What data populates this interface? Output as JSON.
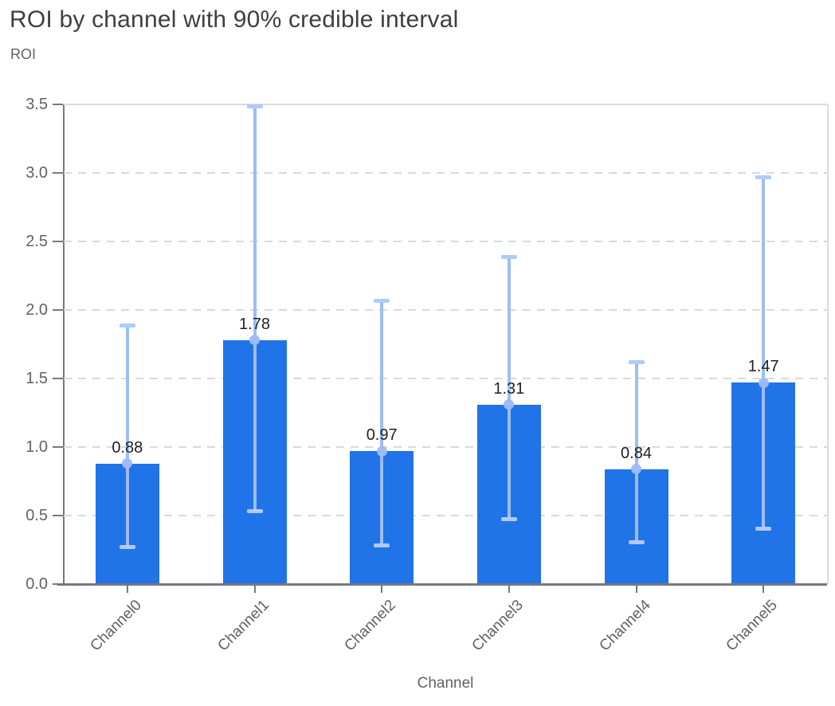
{
  "chart_data": {
    "type": "bar",
    "title": "ROI by channel with 90% credible interval",
    "ylabel": "ROI",
    "xlabel": "Channel",
    "categories": [
      "Channel0",
      "Channel1",
      "Channel2",
      "Channel3",
      "Channel4",
      "Channel5"
    ],
    "series": [
      {
        "name": "ROI mean",
        "values": [
          0.88,
          1.78,
          0.97,
          1.31,
          0.84,
          1.47
        ]
      },
      {
        "name": "90% credible interval lower",
        "values": [
          0.27,
          0.53,
          0.28,
          0.47,
          0.3,
          0.4
        ]
      },
      {
        "name": "90% credible interval upper",
        "values": [
          1.89,
          3.49,
          2.07,
          2.39,
          1.62,
          2.97
        ]
      }
    ],
    "value_labels": [
      "0.88",
      "1.78",
      "0.97",
      "1.31",
      "0.84",
      "1.47"
    ],
    "ylim": [
      0,
      3.5
    ],
    "yticks": [
      "0.0",
      "0.5",
      "1.0",
      "1.5",
      "2.0",
      "2.5",
      "3.0",
      "3.5"
    ],
    "grid": "horizontal dashed, top boundary solid",
    "legend": "none",
    "colors": {
      "bar": "#2173e8",
      "error_bar_line": "#9dbdf6",
      "error_bar_cap": "#aecbfa",
      "mean_dot": "#9ebbf5",
      "gridline": "#d7dade",
      "axis_line": "#75797e",
      "tick_label": "#5f6368",
      "value_label": "#1f2023",
      "title": "#3c4043"
    }
  }
}
